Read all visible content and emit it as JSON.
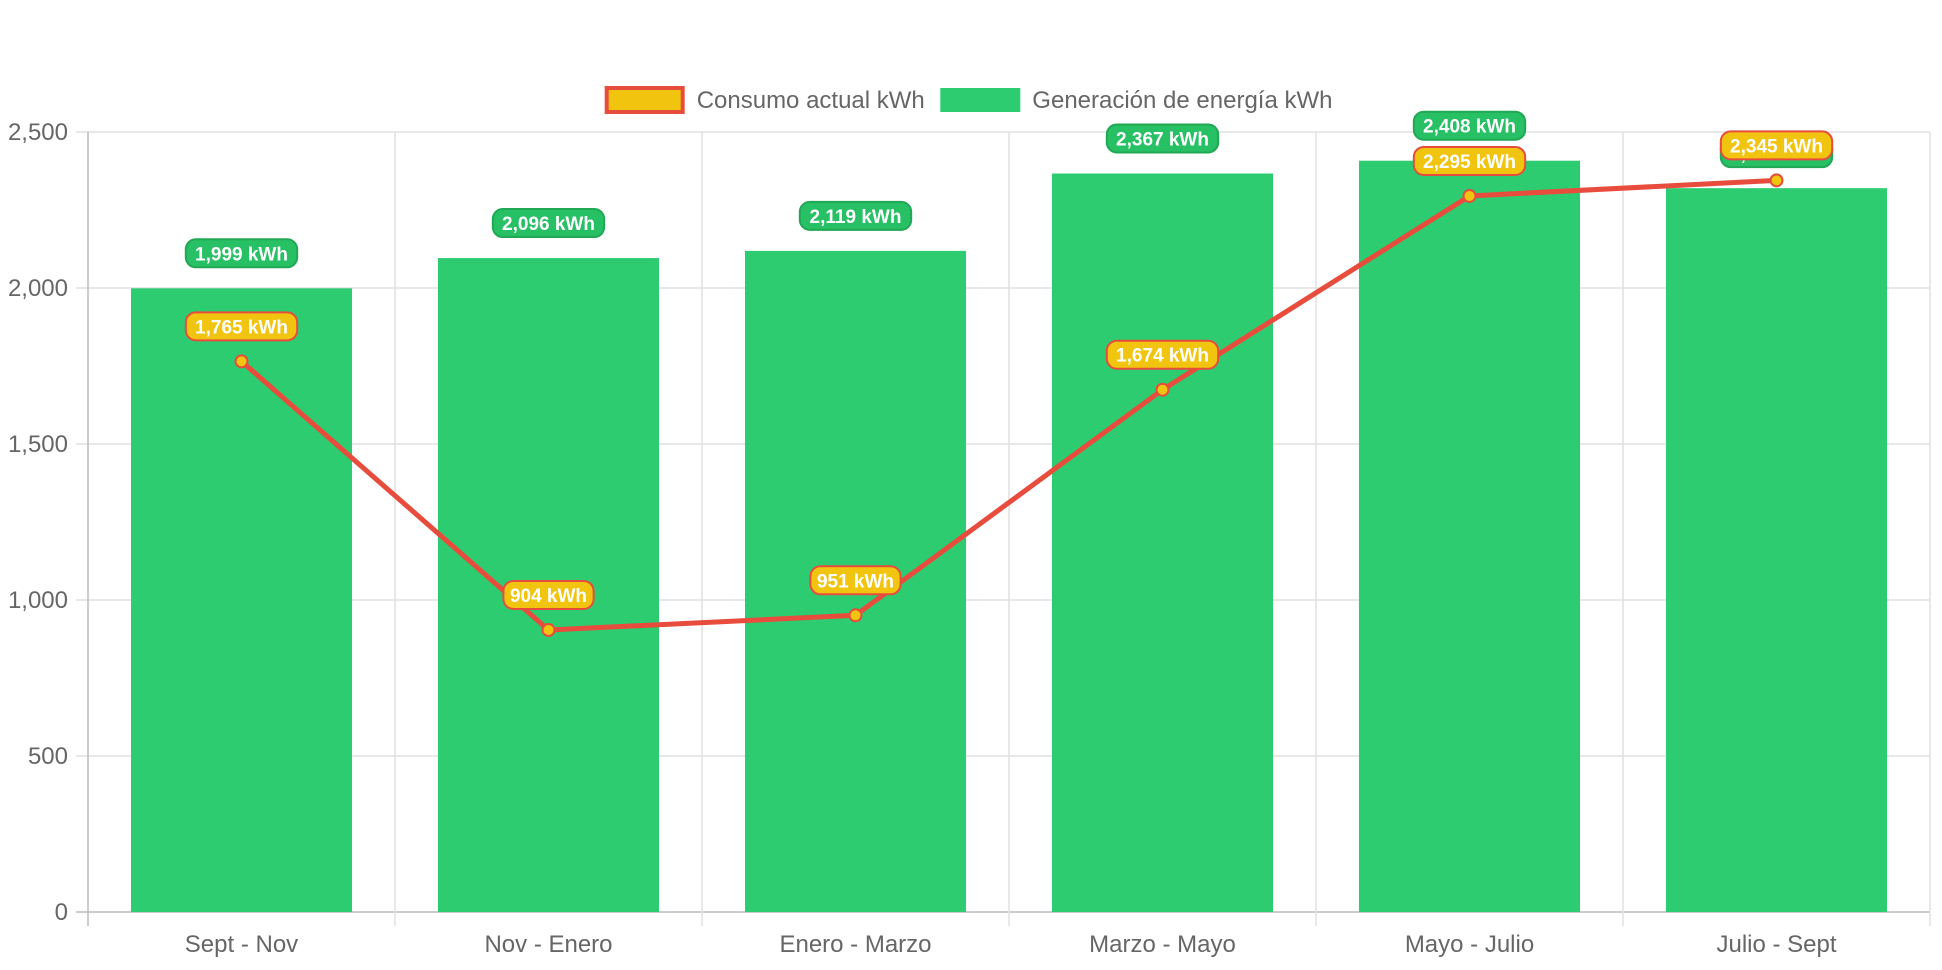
{
  "chart_data": {
    "type": "bar",
    "categories": [
      "Sept - Nov",
      "Nov - Enero",
      "Enero - Marzo",
      "Marzo - Mayo",
      "Mayo - Julio",
      "Julio - Sept"
    ],
    "series": [
      {
        "name": "Consumo actual kWh",
        "type": "line",
        "color": "#e74c3c",
        "point_color": "#f1c40f",
        "values": [
          1765,
          904,
          951,
          1674,
          2295,
          2345
        ],
        "labels": [
          "1,765 kWh",
          "904 kWh",
          "951 kWh",
          "1,674 kWh",
          "2,295 kWh",
          "2,345 kWh"
        ]
      },
      {
        "name": "Generación de energía kWh",
        "type": "bar",
        "color": "#2ecc71",
        "values": [
          1999,
          2096,
          2119,
          2367,
          2408,
          2320
        ],
        "labels": [
          "1,999 kWh",
          "2,096 kWh",
          "2,119 kWh",
          "2,367 kWh",
          "2,408 kWh",
          "2,320 kWh"
        ]
      }
    ],
    "ylim": [
      0,
      2500
    ],
    "y_ticks": [
      "0",
      "500",
      "1,000",
      "1,500",
      "2,000",
      "2,500"
    ],
    "grid": true,
    "legend_position": "top",
    "title": "",
    "xlabel": "",
    "ylabel": ""
  }
}
